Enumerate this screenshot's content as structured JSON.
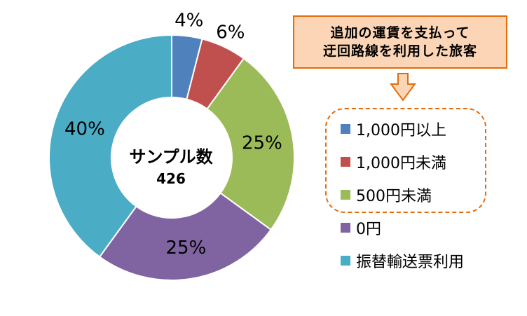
{
  "chart_data": {
    "type": "pie",
    "categories": [
      "1,000円以上",
      "1,000円未満",
      "500円未満",
      "0円",
      "振替輸送票利用"
    ],
    "values": [
      4,
      6,
      25,
      25,
      40
    ],
    "value_labels": [
      "4%",
      "6%",
      "25%",
      "25%",
      "40%"
    ],
    "colors": [
      "#4f81bd",
      "#c0504d",
      "#9bbb59",
      "#8064a2",
      "#4bacc6"
    ],
    "center_title": "サンプル数",
    "center_value": "426",
    "legend_position": "right"
  },
  "callout": {
    "line1": "追加の運賃を支払って",
    "line2": "迂回路線を利用した旅客"
  }
}
